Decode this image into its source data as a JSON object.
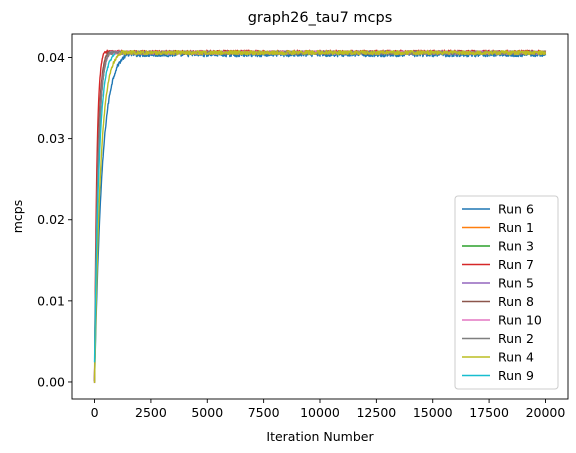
{
  "chart_data": {
    "type": "line",
    "title": "graph26_tau7 mcps",
    "xlabel": "Iteration Number",
    "ylabel": "mcps",
    "xlim": [
      -1000,
      21000
    ],
    "ylim": [
      -0.0021,
      0.0429
    ],
    "xticks": [
      0,
      2500,
      5000,
      7500,
      10000,
      12500,
      15000,
      17500,
      20000
    ],
    "xtick_labels": [
      "0",
      "2500",
      "5000",
      "7500",
      "10000",
      "12500",
      "15000",
      "17500",
      "20000"
    ],
    "yticks": [
      0.0,
      0.01,
      0.02,
      0.03,
      0.04
    ],
    "ytick_labels": [
      "0.00",
      "0.01",
      "0.02",
      "0.03",
      "0.04"
    ],
    "grid": false,
    "legend_position": "lower-right",
    "series": [
      {
        "name": "Run 6",
        "color": "#1f77b4",
        "x": [
          0,
          20000
        ],
        "plateau": 0.0404,
        "noise": 0.0003,
        "ramp_end": 1500,
        "start": 0.0
      },
      {
        "name": "Run 1",
        "color": "#ff7f0e",
        "x": [
          0,
          20000
        ],
        "plateau": 0.0406,
        "noise": 0.0002,
        "ramp_end": 700,
        "start": 0.0
      },
      {
        "name": "Run 3",
        "color": "#2ca02c",
        "x": [
          0,
          20000
        ],
        "plateau": 0.0406,
        "noise": 0.0002,
        "ramp_end": 700,
        "start": 0.0
      },
      {
        "name": "Run 7",
        "color": "#d62728",
        "x": [
          0,
          20000
        ],
        "plateau": 0.0407,
        "noise": 0.0002,
        "ramp_end": 450,
        "start": 0.0
      },
      {
        "name": "Run 5",
        "color": "#9467bd",
        "x": [
          0,
          20000
        ],
        "plateau": 0.0406,
        "noise": 0.0002,
        "ramp_end": 700,
        "start": 0.0
      },
      {
        "name": "Run 8",
        "color": "#8c564b",
        "x": [
          0,
          20000
        ],
        "plateau": 0.0406,
        "noise": 0.0002,
        "ramp_end": 600,
        "start": 0.0
      },
      {
        "name": "Run 10",
        "color": "#e377c2",
        "x": [
          0,
          20000
        ],
        "plateau": 0.0406,
        "noise": 0.0002,
        "ramp_end": 700,
        "start": 0.0
      },
      {
        "name": "Run 2",
        "color": "#7f7f7f",
        "x": [
          0,
          20000
        ],
        "plateau": 0.0406,
        "noise": 0.0002,
        "ramp_end": 700,
        "start": 0.0
      },
      {
        "name": "Run 4",
        "color": "#bcbd22",
        "x": [
          0,
          20000
        ],
        "plateau": 0.0406,
        "noise": 0.00025,
        "ramp_end": 1200,
        "start": 0.0
      },
      {
        "name": "Run 9",
        "color": "#17becf",
        "x": [
          0,
          900
        ],
        "plateau": 0.0404,
        "noise": 0.0002,
        "ramp_end": 900,
        "start": 0.0025
      }
    ]
  }
}
